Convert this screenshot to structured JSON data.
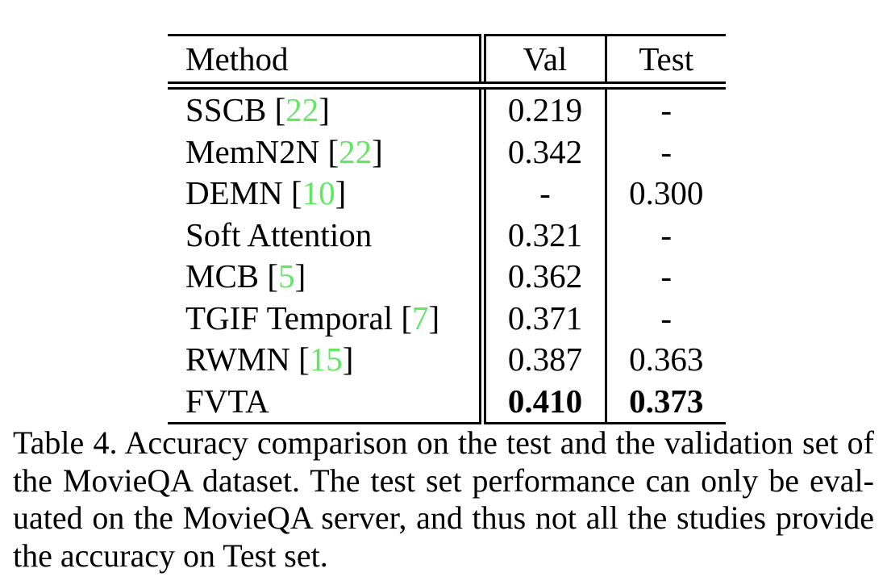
{
  "colors": {
    "background": "#ffffff",
    "text": "#000000",
    "citation_green": "#62e762"
  },
  "table": {
    "columns": [
      "Method",
      "Val",
      "Test"
    ],
    "rows": [
      {
        "method": "SSCB",
        "cite": "22",
        "val": "0.219",
        "test": "-",
        "bold": false
      },
      {
        "method": "MemN2N",
        "cite": "22",
        "val": "0.342",
        "test": "-",
        "bold": false
      },
      {
        "method": "DEMN",
        "cite": "10",
        "val": "-",
        "test": "0.300",
        "bold": false
      },
      {
        "method": "Soft Attention",
        "cite": null,
        "val": "0.321",
        "test": "-",
        "bold": false
      },
      {
        "method": "MCB",
        "cite": "5",
        "val": "0.362",
        "test": "-",
        "bold": false
      },
      {
        "method": "TGIF Temporal",
        "cite": "7",
        "val": "0.371",
        "test": "-",
        "bold": false
      },
      {
        "method": "RWMN",
        "cite": "15",
        "val": "0.387",
        "test": "0.363",
        "bold": false
      },
      {
        "method": "FVTA",
        "cite": null,
        "val": "0.410",
        "test": "0.373",
        "bold": true
      }
    ]
  },
  "caption": {
    "lines": [
      "Table 4. Accuracy comparison on the test and the validation set of",
      "the MovieQA dataset. The test set performance can only be eval-",
      "uated on the MovieQA server, and thus not all the studies provide",
      "the accuracy on Test set."
    ]
  }
}
